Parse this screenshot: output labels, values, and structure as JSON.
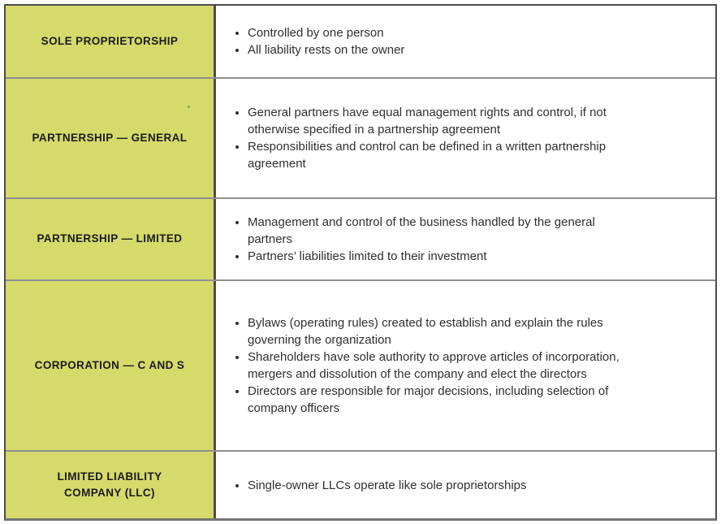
{
  "colors": {
    "page_bg": "#ffffff",
    "label_cell_bg": "#d5da6b",
    "outer_border": "#4c4c4c",
    "inner_border": "#8f8f8f",
    "bottom_border": "#757575",
    "label_text": "#1b1b1b",
    "body_text": "#2f2f2f",
    "stray_mark": "#7aa658"
  },
  "table": {
    "rows": [
      {
        "label": "SOLE PROPRIETORSHIP",
        "bullets": [
          "Controlled by one person",
          "All liability rests on the owner"
        ]
      },
      {
        "label": "PARTNERSHIP — GENERAL",
        "bullets": [
          "General partners have equal management rights and control, if not otherwise specified in a partnership agreement",
          "Responsibilities and control can be defined in a written partnership agreement"
        ]
      },
      {
        "label": "PARTNERSHIP — LIMITED",
        "bullets": [
          "Management and control of the business handled by the general partners",
          "Partners’ liabilities limited to their investment"
        ]
      },
      {
        "label": "CORPORATION — C AND S",
        "bullets": [
          "Bylaws (operating rules) created to establish and explain the rules governing the organization",
          "Shareholders have sole authority to approve articles of incorporation, mergers and dissolution of the company and elect the directors",
          "Directors are responsible for major decisions, including selection of company officers"
        ]
      },
      {
        "label": "LIMITED LIABILITY COMPANY (LLC)",
        "bullets": [
          "Single-owner LLCs operate like sole proprietorships"
        ]
      }
    ]
  }
}
